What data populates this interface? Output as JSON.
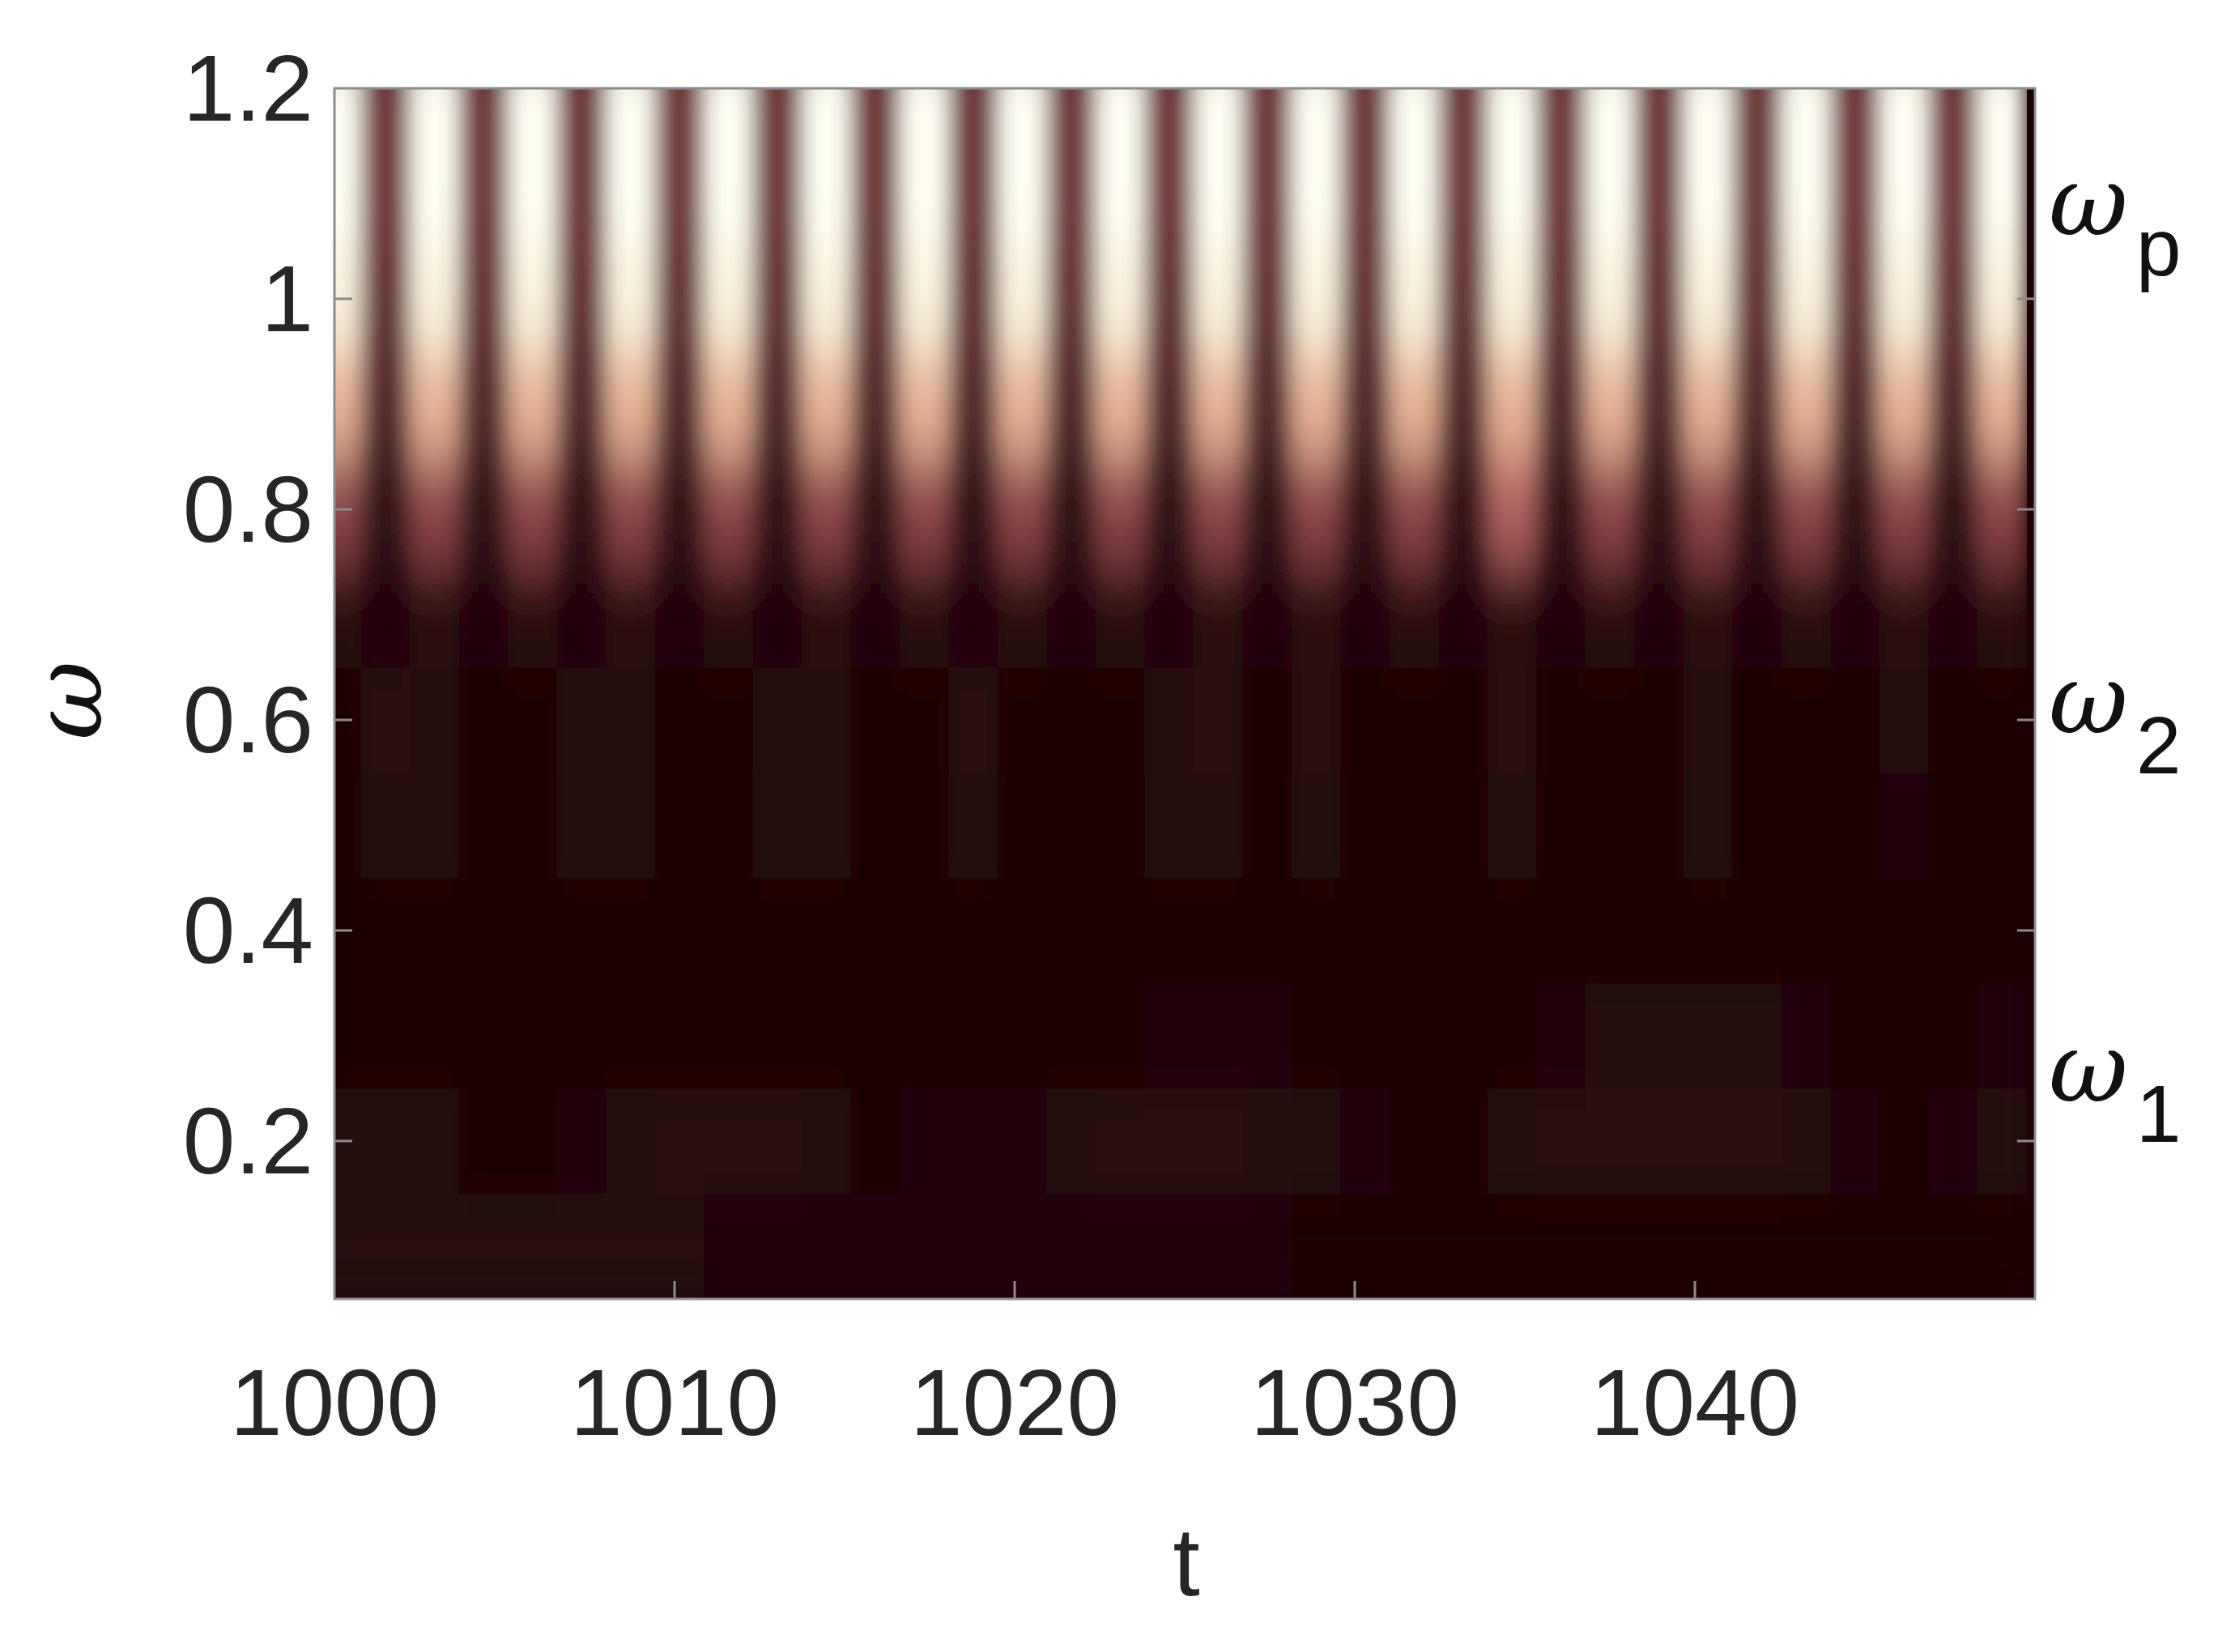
{
  "chart_data": {
    "type": "heatmap",
    "xlabel": "t",
    "ylabel": "ω",
    "xlim": [
      1000,
      1050
    ],
    "ylim": [
      0.05,
      1.2
    ],
    "xticks": [
      1000,
      1010,
      1020,
      1030,
      1040
    ],
    "yticks": [
      0.2,
      0.4,
      0.6,
      0.8,
      1,
      1.2
    ],
    "colormap": [
      "#1c0003",
      "#3e1f1f",
      "#8a4446",
      "#d47c78",
      "#f2d7a6",
      "#fffff4"
    ],
    "annotations": [
      {
        "text": "ω",
        "sub": "p"
      },
      {
        "text": "ω",
        "sub": "2"
      },
      {
        "text": "ω",
        "sub": "1"
      }
    ],
    "x": [
      1000.06,
      1001.5,
      1002.94,
      1004.38,
      1005.82,
      1007.26,
      1008.7,
      1010.14,
      1011.58,
      1013.02,
      1014.46,
      1015.9,
      1017.34,
      1018.78,
      1020.22,
      1021.66,
      1023.1,
      1024.54,
      1025.98,
      1027.42,
      1028.86,
      1030.3,
      1031.74,
      1033.18,
      1034.62,
      1036.06,
      1037.5,
      1038.94,
      1040.38,
      1041.82,
      1043.26,
      1044.7,
      1046.14,
      1047.58,
      1049.02
    ],
    "y": [
      0.1,
      0.2,
      0.3,
      0.4,
      0.5,
      0.6,
      0.7,
      0.8,
      0.9,
      1.0,
      1.1,
      1.2
    ],
    "z": [
      [
        0.05,
        0.05,
        0.05,
        0.05,
        0.05,
        0.05,
        0.05,
        0.05,
        0.04,
        0.04,
        0.04,
        0.04,
        0.04,
        0.04,
        0.03,
        0.03,
        0.03,
        0.03,
        0.03,
        0.03,
        0.01,
        0.01,
        0.01,
        0.01,
        0.01,
        0.01,
        0.01,
        0.01,
        0.01,
        0.01,
        0.01,
        0.01,
        0.01,
        0.01,
        0.01
      ],
      [
        0.07,
        0.07,
        0.05,
        0.02,
        0.02,
        0.03,
        0.06,
        0.08,
        0.09,
        0.08,
        0.06,
        0.02,
        0.03,
        0.03,
        0.04,
        0.06,
        0.08,
        0.09,
        0.08,
        0.07,
        0.05,
        0.03,
        0.02,
        0.02,
        0.05,
        0.08,
        0.09,
        0.09,
        0.09,
        0.08,
        0.07,
        0.04,
        0.02,
        0.03,
        0.06
      ],
      [
        0.01,
        0.01,
        0.01,
        0.01,
        0.01,
        0.01,
        0.01,
        0.01,
        0.01,
        0.01,
        0.01,
        0.01,
        0.01,
        0.01,
        0.01,
        0.01,
        0.01,
        0.03,
        0.03,
        0.03,
        0.01,
        0.01,
        0.01,
        0.01,
        0.01,
        0.04,
        0.05,
        0.05,
        0.05,
        0.05,
        0.04,
        0.01,
        0.01,
        0.01,
        0.03
      ],
      [
        0.01,
        0.01,
        0.01,
        0.01,
        0.01,
        0.01,
        0.01,
        0.01,
        0.01,
        0.01,
        0.01,
        0.01,
        0.01,
        0.01,
        0.01,
        0.01,
        0.01,
        0.01,
        0.01,
        0.01,
        0.01,
        0.01,
        0.01,
        0.01,
        0.01,
        0.01,
        0.01,
        0.01,
        0.01,
        0.01,
        0.01,
        0.01,
        0.01,
        0.01,
        0.01
      ],
      [
        0.01,
        0.06,
        0.06,
        0.01,
        0.01,
        0.06,
        0.06,
        0.01,
        0.01,
        0.05,
        0.05,
        0.01,
        0.01,
        0.06,
        0.01,
        0.01,
        0.01,
        0.06,
        0.06,
        0.01,
        0.06,
        0.01,
        0.01,
        0.01,
        0.06,
        0.01,
        0.01,
        0.01,
        0.06,
        0.01,
        0.01,
        0.01,
        0.04,
        0.01,
        0.01
      ],
      [
        0.02,
        0.08,
        0.07,
        0.02,
        0.02,
        0.07,
        0.07,
        0.02,
        0.02,
        0.07,
        0.07,
        0.02,
        0.02,
        0.08,
        0.02,
        0.02,
        0.02,
        0.07,
        0.08,
        0.02,
        0.08,
        0.02,
        0.02,
        0.02,
        0.08,
        0.02,
        0.02,
        0.02,
        0.07,
        0.02,
        0.02,
        0.02,
        0.05,
        0.02,
        0.02
      ],
      [
        0.09,
        0.04,
        0.09,
        0.04,
        0.09,
        0.04,
        0.09,
        0.04,
        0.09,
        0.04,
        0.09,
        0.04,
        0.09,
        0.04,
        0.09,
        0.04,
        0.09,
        0.04,
        0.09,
        0.04,
        0.09,
        0.04,
        0.09,
        0.04,
        0.09,
        0.04,
        0.09,
        0.04,
        0.09,
        0.04,
        0.09,
        0.04,
        0.09,
        0.04,
        0.09
      ],
      [
        0.4,
        0.12,
        0.4,
        0.12,
        0.4,
        0.12,
        0.4,
        0.12,
        0.4,
        0.12,
        0.4,
        0.12,
        0.4,
        0.12,
        0.4,
        0.12,
        0.4,
        0.12,
        0.4,
        0.12,
        0.4,
        0.12,
        0.4,
        0.12,
        0.5,
        0.12,
        0.4,
        0.12,
        0.4,
        0.12,
        0.4,
        0.12,
        0.4,
        0.12,
        0.4
      ],
      [
        0.72,
        0.25,
        0.72,
        0.25,
        0.72,
        0.25,
        0.72,
        0.25,
        0.72,
        0.25,
        0.72,
        0.25,
        0.72,
        0.25,
        0.72,
        0.25,
        0.72,
        0.25,
        0.72,
        0.25,
        0.72,
        0.25,
        0.72,
        0.25,
        0.72,
        0.25,
        0.72,
        0.25,
        0.72,
        0.25,
        0.72,
        0.25,
        0.72,
        0.25,
        0.72
      ],
      [
        0.94,
        0.3,
        0.94,
        0.3,
        0.94,
        0.3,
        0.94,
        0.3,
        0.94,
        0.3,
        0.94,
        0.3,
        0.94,
        0.3,
        0.94,
        0.3,
        0.94,
        0.3,
        0.94,
        0.3,
        0.94,
        0.3,
        0.94,
        0.3,
        0.94,
        0.3,
        0.94,
        0.3,
        0.94,
        0.3,
        0.94,
        0.3,
        0.94,
        0.3,
        0.94
      ],
      [
        1,
        0.32,
        1,
        0.32,
        1,
        0.32,
        1,
        0.32,
        1,
        0.32,
        1,
        0.32,
        1,
        0.32,
        1,
        0.32,
        1,
        0.32,
        1,
        0.32,
        1,
        0.32,
        1,
        0.32,
        1,
        0.32,
        1,
        0.32,
        1,
        0.32,
        1,
        0.32,
        1,
        0.32,
        1
      ],
      [
        1,
        0.32,
        1,
        0.32,
        1,
        0.32,
        1,
        0.32,
        1,
        0.32,
        1,
        0.32,
        1,
        0.32,
        1,
        0.32,
        1,
        0.32,
        1,
        0.32,
        1,
        0.32,
        1,
        0.32,
        1,
        0.32,
        1,
        0.32,
        1,
        0.32,
        1,
        0.32,
        1,
        0.32,
        1
      ]
    ]
  }
}
